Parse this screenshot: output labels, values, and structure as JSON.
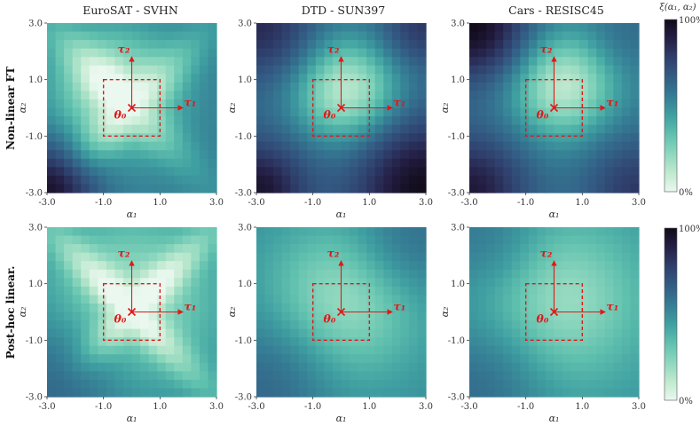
{
  "chart_data": {
    "type": "heatmap",
    "row_labels": [
      "Non-linear FT",
      "Post-hoc linear."
    ],
    "col_titles": [
      "EuroSAT - SVHN",
      "DTD - SUN397",
      "Cars - RESISC45"
    ],
    "xlabel": "α₁",
    "ylabel": "α₂",
    "xlim": [
      -3.0,
      3.0
    ],
    "ylim": [
      -3.0,
      3.0
    ],
    "x_ticks": [
      "-3.0",
      "-1.0",
      "1.0",
      "3.0"
    ],
    "y_ticks": [
      "-3.0",
      "-1.0",
      "1.0",
      "3.0"
    ],
    "colorbar": {
      "label": "ξ(α₁, α₂)",
      "max_label": "100%",
      "min_label": "0%",
      "range": [
        0,
        100
      ]
    },
    "colormap": [
      "#eaf8ef",
      "#bfe9cf",
      "#8dd7be",
      "#5fc0ae",
      "#3f9fa1",
      "#357c94",
      "#335c84",
      "#2f3f6c",
      "#241f45",
      "#120b1a"
    ],
    "annotations": {
      "origin": "θ₀",
      "tau1": "τ₁",
      "tau2": "τ₂"
    },
    "dashed_box": [
      -1.0,
      1.0
    ],
    "grid_size": 20,
    "panels": [
      {
        "row": 0,
        "col": 0,
        "title": "EuroSAT - SVHN",
        "peak": [
          -0.6,
          0.6
        ],
        "center_sat": 12,
        "spread": 1.5,
        "cross_sat": 22,
        "cross_width": 0.55,
        "cross_angle_deg": 45,
        "dark_corners": [
          [
            -3.0,
            -3.0,
            95,
            1.2
          ]
        ],
        "base_sat": 55
      },
      {
        "row": 0,
        "col": 1,
        "title": "DTD - SUN397",
        "peak": [
          0.2,
          0.6
        ],
        "center_sat": 10,
        "spread": 1.3,
        "cross_sat": 0,
        "cross_width": 0.5,
        "cross_angle_deg": 0,
        "dark_corners": [
          [
            3.0,
            -3.0,
            100,
            1.7
          ],
          [
            -3.0,
            -3.0,
            95,
            1.2
          ],
          [
            -3.0,
            3.0,
            85,
            1.3
          ],
          [
            3.0,
            3.0,
            80,
            1.0
          ]
        ],
        "base_sat": 62
      },
      {
        "row": 0,
        "col": 2,
        "title": "Cars - RESISC45",
        "peak": [
          0.3,
          0.8
        ],
        "center_sat": 10,
        "spread": 1.3,
        "cross_sat": 0,
        "cross_width": 0.5,
        "cross_angle_deg": 0,
        "dark_corners": [
          [
            -3.0,
            3.0,
            100,
            1.4
          ],
          [
            -3.0,
            -3.0,
            92,
            1.4
          ],
          [
            3.0,
            -3.0,
            80,
            1.3
          ],
          [
            3.0,
            3.0,
            60,
            1.0
          ]
        ],
        "base_sat": 58
      },
      {
        "row": 1,
        "col": 0,
        "title": "",
        "peak": [
          0.0,
          0.5
        ],
        "center_sat": 18,
        "spread": 2.0,
        "cross_sat": 30,
        "cross_width": 0.45,
        "cross_angle_deg": 45,
        "dark_corners": [
          [
            -3.0,
            -3.0,
            62,
            1.8
          ]
        ],
        "base_sat": 50
      },
      {
        "row": 1,
        "col": 1,
        "title": "",
        "peak": [
          0.1,
          0.4
        ],
        "center_sat": 18,
        "spread": 1.9,
        "cross_sat": 0,
        "cross_width": 0.45,
        "cross_angle_deg": 0,
        "dark_corners": [
          [
            -3.0,
            -3.0,
            62,
            1.8
          ],
          [
            3.0,
            3.0,
            58,
            1.6
          ]
        ],
        "base_sat": 50
      },
      {
        "row": 1,
        "col": 2,
        "title": "",
        "peak": [
          0.2,
          0.4
        ],
        "center_sat": 18,
        "spread": 2.0,
        "cross_sat": 0,
        "cross_width": 0.45,
        "cross_angle_deg": 0,
        "dark_corners": [
          [
            -3.0,
            -3.0,
            60,
            1.8
          ],
          [
            -3.0,
            3.0,
            55,
            1.6
          ]
        ],
        "base_sat": 48
      }
    ]
  }
}
